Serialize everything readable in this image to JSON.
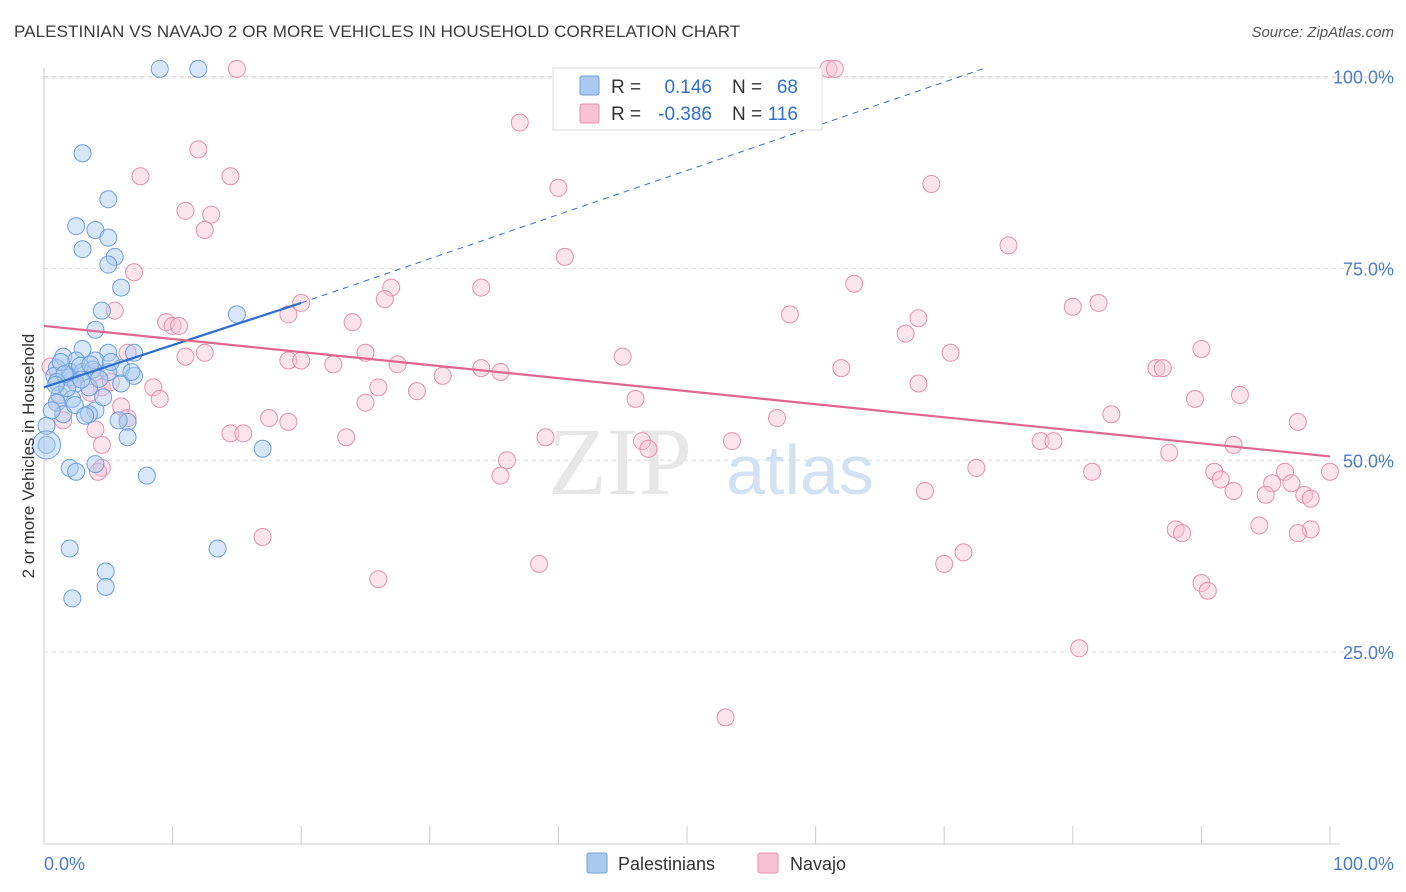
{
  "title": "PALESTINIAN VS NAVAJO 2 OR MORE VEHICLES IN HOUSEHOLD CORRELATION CHART",
  "source": "Source: ZipAtlas.com",
  "watermark": {
    "zip": "ZIP",
    "atlas": "atlas"
  },
  "colors": {
    "palestinians_fill": "#a9c9f0",
    "palestinians_stroke": "#6f9fde",
    "palestinians_line": "#2f6fd0",
    "navajo_fill": "#f7c3d4",
    "navajo_stroke": "#e98fae",
    "navajo_line": "#e0658f",
    "grid": "#dddddd",
    "tick_label": "#4a7cc9"
  },
  "legend_stats": [
    {
      "series": "Palestinians",
      "r_label": "R =",
      "r_value": "0.146",
      "n_label": "N =",
      "n_value": "68"
    },
    {
      "series": "Navajo",
      "r_label": "R =",
      "r_value": "-0.386",
      "n_label": "N =",
      "n_value": "116"
    }
  ],
  "chart_data": {
    "type": "scatter",
    "title": "PALESTINIAN VS NAVAJO 2 OR MORE VEHICLES IN HOUSEHOLD CORRELATION CHART",
    "xlabel": "",
    "ylabel": "2 or more Vehicles in Household",
    "xlim": [
      0,
      100
    ],
    "ylim": [
      0,
      103
    ],
    "x_tick_labels": [
      "0.0%",
      "100.0%"
    ],
    "y_ticks": [
      25,
      50,
      75,
      100
    ],
    "y_tick_labels": [
      "25.0%",
      "50.0%",
      "75.0%",
      "100.0%"
    ],
    "legend": [
      "Palestinians",
      "Navajo"
    ],
    "series": [
      {
        "name": "Palestinians",
        "trend": {
          "x0": 0,
          "y0": 59.5,
          "x1": 20,
          "y1": 70.5,
          "dash_x1": 73,
          "dash_y1": 101
        },
        "points": [
          [
            9,
            101
          ],
          [
            12,
            101
          ],
          [
            3,
            90
          ],
          [
            5,
            84
          ],
          [
            2.5,
            80.5
          ],
          [
            4,
            80
          ],
          [
            5,
            79
          ],
          [
            3,
            77.5
          ],
          [
            5.5,
            76.5
          ],
          [
            5,
            75.5
          ],
          [
            6,
            72.5
          ],
          [
            4.5,
            69.5
          ],
          [
            15,
            69
          ],
          [
            4,
            67
          ],
          [
            3,
            64.5
          ],
          [
            5,
            64
          ],
          [
            7,
            64
          ],
          [
            1.5,
            63.5
          ],
          [
            2.5,
            63
          ],
          [
            4,
            63
          ],
          [
            1,
            62
          ],
          [
            2,
            61.5
          ],
          [
            3,
            61.5
          ],
          [
            6,
            62
          ],
          [
            7,
            61
          ],
          [
            5,
            61.5
          ],
          [
            0.8,
            61
          ],
          [
            2,
            60.8
          ],
          [
            1,
            60.2
          ],
          [
            2.5,
            60
          ],
          [
            6,
            60
          ],
          [
            3.5,
            59.5
          ],
          [
            1.2,
            58.5
          ],
          [
            2.2,
            58
          ],
          [
            1,
            57.5
          ],
          [
            4,
            56.5
          ],
          [
            1.5,
            56
          ],
          [
            3.5,
            56
          ],
          [
            6.5,
            55
          ],
          [
            0.2,
            54.5
          ],
          [
            6.5,
            53
          ],
          [
            0.2,
            52
          ],
          [
            17,
            51.5
          ],
          [
            4,
            49.5
          ],
          [
            2,
            49
          ],
          [
            2.5,
            48.5
          ],
          [
            8,
            48
          ],
          [
            2,
            38.5
          ],
          [
            13.5,
            38.5
          ],
          [
            4.8,
            35.5
          ],
          [
            4.8,
            33.5
          ],
          [
            2.2,
            32
          ],
          [
            1.3,
            62.8
          ],
          [
            2.8,
            62.3
          ],
          [
            3.8,
            61.8
          ],
          [
            5.2,
            62.8
          ],
          [
            1.8,
            59.4
          ],
          [
            4.6,
            58.2
          ],
          [
            2.4,
            57.2
          ],
          [
            0.6,
            56.5
          ],
          [
            3.2,
            55.8
          ],
          [
            5.8,
            55.2
          ],
          [
            1.6,
            61.2
          ],
          [
            2.9,
            60.5
          ],
          [
            0.9,
            59.8
          ],
          [
            6.8,
            61.5
          ],
          [
            3.6,
            62.5
          ],
          [
            4.3,
            60.6
          ]
        ]
      },
      {
        "name": "Navajo",
        "trend": {
          "x0": 0,
          "y0": 67.5,
          "x1": 100,
          "y1": 50.5
        },
        "points": [
          [
            15,
            101
          ],
          [
            61,
            101
          ],
          [
            61.5,
            101
          ],
          [
            37,
            94
          ],
          [
            12,
            90.5
          ],
          [
            7.5,
            87
          ],
          [
            14.5,
            87
          ],
          [
            40,
            85.5
          ],
          [
            69,
            86
          ],
          [
            11,
            82.5
          ],
          [
            13,
            82
          ],
          [
            12.5,
            80
          ],
          [
            40.5,
            76.5
          ],
          [
            75,
            78
          ],
          [
            7,
            74.5
          ],
          [
            63,
            73
          ],
          [
            27,
            72.5
          ],
          [
            34,
            72.5
          ],
          [
            5.5,
            69.5
          ],
          [
            20,
            70.5
          ],
          [
            26.5,
            71
          ],
          [
            80,
            70
          ],
          [
            82,
            70.5
          ],
          [
            19,
            69
          ],
          [
            58,
            69
          ],
          [
            68,
            68.5
          ],
          [
            9.5,
            68
          ],
          [
            10,
            67.5
          ],
          [
            10.5,
            67.5
          ],
          [
            24,
            68
          ],
          [
            67,
            66.5
          ],
          [
            90,
            64.5
          ],
          [
            6.5,
            64
          ],
          [
            12.5,
            64
          ],
          [
            25,
            64
          ],
          [
            11,
            63.5
          ],
          [
            45,
            63.5
          ],
          [
            70.5,
            64
          ],
          [
            19,
            63
          ],
          [
            20,
            63
          ],
          [
            27.5,
            62.5
          ],
          [
            22.5,
            62.5
          ],
          [
            34,
            62
          ],
          [
            35.5,
            61.5
          ],
          [
            62,
            62
          ],
          [
            86.5,
            62
          ],
          [
            87,
            62
          ],
          [
            4,
            61.5
          ],
          [
            31,
            61
          ],
          [
            4.5,
            59.5
          ],
          [
            8.5,
            59.5
          ],
          [
            26,
            59.5
          ],
          [
            29,
            59
          ],
          [
            68,
            60
          ],
          [
            9,
            58
          ],
          [
            25,
            57.5
          ],
          [
            46,
            58
          ],
          [
            89.5,
            58
          ],
          [
            93,
            58.5
          ],
          [
            6,
            57
          ],
          [
            17.5,
            55.5
          ],
          [
            19,
            55
          ],
          [
            83,
            56
          ],
          [
            57,
            55.5
          ],
          [
            97.5,
            55
          ],
          [
            6.5,
            55.5
          ],
          [
            4,
            54
          ],
          [
            14.5,
            53.5
          ],
          [
            15.5,
            53.5
          ],
          [
            23.5,
            53
          ],
          [
            39,
            53
          ],
          [
            46.5,
            52.5
          ],
          [
            53.5,
            52.5
          ],
          [
            77.5,
            52.5
          ],
          [
            78.5,
            52.5
          ],
          [
            92.5,
            52
          ],
          [
            47,
            51.5
          ],
          [
            87.5,
            51
          ],
          [
            4.5,
            52
          ],
          [
            36,
            50
          ],
          [
            4.5,
            49
          ],
          [
            4.2,
            48.5
          ],
          [
            72.5,
            49
          ],
          [
            81.5,
            48.5
          ],
          [
            91,
            48.5
          ],
          [
            96.5,
            48.5
          ],
          [
            100,
            48.5
          ],
          [
            35.5,
            48
          ],
          [
            91.5,
            47.5
          ],
          [
            97,
            47
          ],
          [
            95.5,
            47
          ],
          [
            68.5,
            46
          ],
          [
            92.5,
            46
          ],
          [
            95,
            45.5
          ],
          [
            98,
            45.5
          ],
          [
            98.5,
            45
          ],
          [
            94.5,
            41.5
          ],
          [
            88,
            41
          ],
          [
            88.5,
            40.5
          ],
          [
            98.5,
            41
          ],
          [
            97.5,
            40.5
          ],
          [
            17,
            40
          ],
          [
            71.5,
            38
          ],
          [
            38.5,
            36.5
          ],
          [
            70,
            36.5
          ],
          [
            26,
            34.5
          ],
          [
            90,
            34
          ],
          [
            90.5,
            33
          ],
          [
            80.5,
            25.5
          ],
          [
            53,
            16.5
          ],
          [
            1,
            57.5
          ],
          [
            2.2,
            60.5
          ],
          [
            3.6,
            58.8
          ],
          [
            1.5,
            55.2
          ],
          [
            5.2,
            60.2
          ],
          [
            0.5,
            62.2
          ]
        ]
      }
    ]
  },
  "axis": {
    "y_label": "2 or more Vehicles in Household",
    "x_min_label": "0.0%",
    "x_max_label": "100.0%"
  },
  "bottom_legend": [
    {
      "label": "Palestinians"
    },
    {
      "label": "Navajo"
    }
  ]
}
